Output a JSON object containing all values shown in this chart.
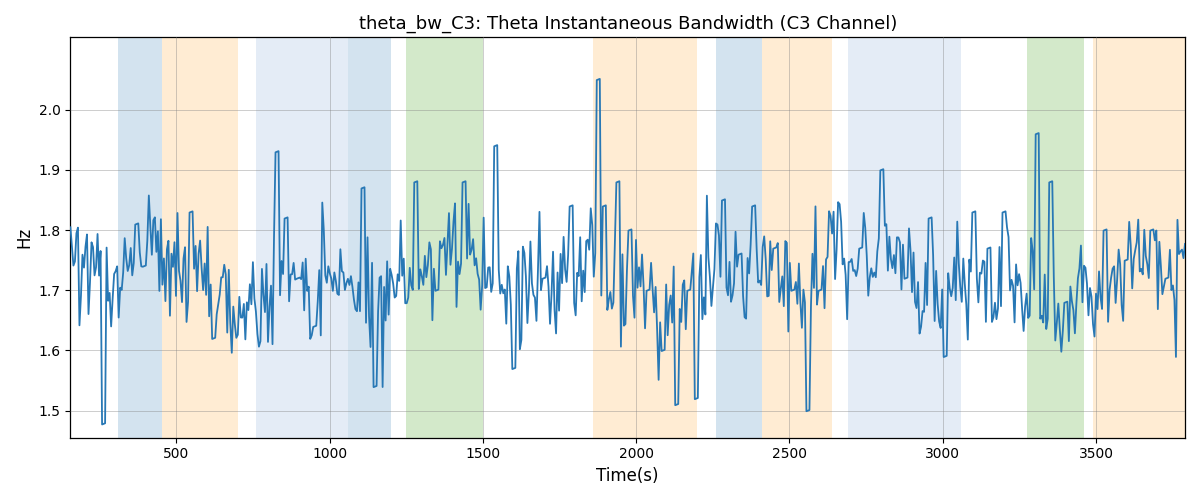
{
  "title": "theta_bw_C3: Theta Instantaneous Bandwidth (C3 Channel)",
  "xlabel": "Time(s)",
  "ylabel": "Hz",
  "xlim": [
    155,
    3790
  ],
  "ylim": [
    1.455,
    2.12
  ],
  "yticks": [
    1.5,
    1.6,
    1.7,
    1.8,
    1.9,
    2.0
  ],
  "xticks": [
    500,
    1000,
    1500,
    2000,
    2500,
    3000,
    3500
  ],
  "line_color": "#2878b5",
  "line_width": 1.3,
  "bands": [
    {
      "xmin": 310,
      "xmax": 455,
      "color": "#a8c8e0",
      "alpha": 0.5
    },
    {
      "xmin": 455,
      "xmax": 700,
      "color": "#ffd59e",
      "alpha": 0.45
    },
    {
      "xmin": 760,
      "xmax": 1060,
      "color": "#c5d5ec",
      "alpha": 0.45
    },
    {
      "xmin": 1060,
      "xmax": 1200,
      "color": "#a8c8e0",
      "alpha": 0.5
    },
    {
      "xmin": 1250,
      "xmax": 1500,
      "color": "#b0d8a0",
      "alpha": 0.55
    },
    {
      "xmin": 1860,
      "xmax": 2200,
      "color": "#ffd59e",
      "alpha": 0.45
    },
    {
      "xmin": 2260,
      "xmax": 2410,
      "color": "#a8c8e0",
      "alpha": 0.5
    },
    {
      "xmin": 2410,
      "xmax": 2640,
      "color": "#ffd59e",
      "alpha": 0.45
    },
    {
      "xmin": 2690,
      "xmax": 3060,
      "color": "#c5d5ec",
      "alpha": 0.45
    },
    {
      "xmin": 3275,
      "xmax": 3460,
      "color": "#b0d8a0",
      "alpha": 0.55
    },
    {
      "xmin": 3490,
      "xmax": 3790,
      "color": "#ffd59e",
      "alpha": 0.45
    }
  ],
  "figsize": [
    12.0,
    5.0
  ],
  "dpi": 100,
  "title_fontsize": 13,
  "label_fontsize": 12
}
